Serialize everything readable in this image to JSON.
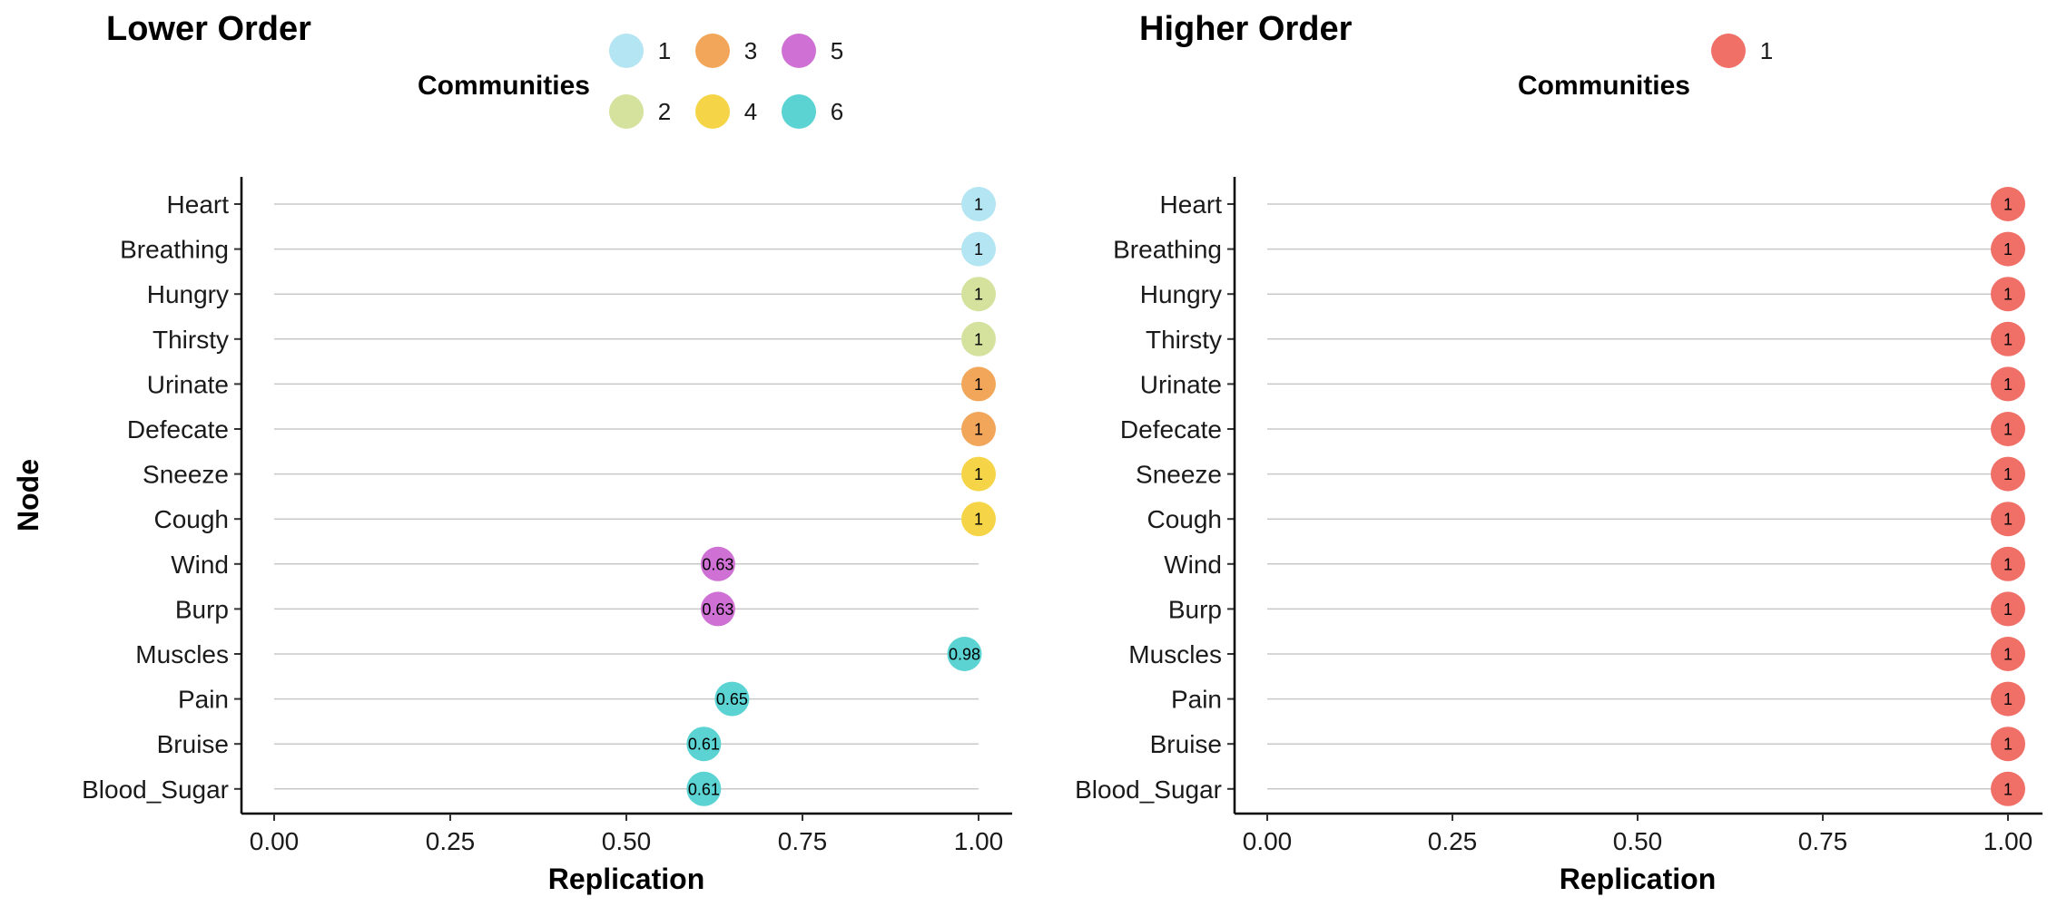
{
  "chart_data": [
    {
      "type": "scatter",
      "title": "Lower Order",
      "xlabel": "Replication",
      "ylabel": "Node",
      "xlim": [
        0,
        1
      ],
      "xticks": [
        "0.00",
        "0.25",
        "0.50",
        "0.75",
        "1.00"
      ],
      "legend_title": "Communities",
      "legend_placement": "top",
      "grid": "horizontal",
      "legend": [
        {
          "label": "1",
          "color": "#B3E5F2"
        },
        {
          "label": "2",
          "color": "#D4E29E"
        },
        {
          "label": "3",
          "color": "#F2A65A"
        },
        {
          "label": "4",
          "color": "#F5D547"
        },
        {
          "label": "5",
          "color": "#CF70D4"
        },
        {
          "label": "6",
          "color": "#5CD3D3"
        }
      ],
      "points": [
        {
          "node": "Heart",
          "value": 1,
          "label": "1",
          "community": "1"
        },
        {
          "node": "Breathing",
          "value": 1,
          "label": "1",
          "community": "1"
        },
        {
          "node": "Hungry",
          "value": 1,
          "label": "1",
          "community": "2"
        },
        {
          "node": "Thirsty",
          "value": 1,
          "label": "1",
          "community": "2"
        },
        {
          "node": "Urinate",
          "value": 1,
          "label": "1",
          "community": "3"
        },
        {
          "node": "Defecate",
          "value": 1,
          "label": "1",
          "community": "3"
        },
        {
          "node": "Sneeze",
          "value": 1,
          "label": "1",
          "community": "4"
        },
        {
          "node": "Cough",
          "value": 1,
          "label": "1",
          "community": "4"
        },
        {
          "node": "Wind",
          "value": 0.63,
          "label": "0.63",
          "community": "5"
        },
        {
          "node": "Burp",
          "value": 0.63,
          "label": "0.63",
          "community": "5"
        },
        {
          "node": "Muscles",
          "value": 0.98,
          "label": "0.98",
          "community": "6"
        },
        {
          "node": "Pain",
          "value": 0.65,
          "label": "0.65",
          "community": "6"
        },
        {
          "node": "Bruise",
          "value": 0.61,
          "label": "0.61",
          "community": "6"
        },
        {
          "node": "Blood_Sugar",
          "value": 0.61,
          "label": "0.61",
          "community": "6"
        }
      ]
    },
    {
      "type": "scatter",
      "title": "Higher Order",
      "xlabel": "Replication",
      "ylabel": "",
      "xlim": [
        0,
        1
      ],
      "xticks": [
        "0.00",
        "0.25",
        "0.50",
        "0.75",
        "1.00"
      ],
      "legend_title": "Communities",
      "legend_placement": "top",
      "grid": "horizontal",
      "legend": [
        {
          "label": "1",
          "color": "#F07068"
        }
      ],
      "points": [
        {
          "node": "Heart",
          "value": 1,
          "label": "1",
          "community": "1"
        },
        {
          "node": "Breathing",
          "value": 1,
          "label": "1",
          "community": "1"
        },
        {
          "node": "Hungry",
          "value": 1,
          "label": "1",
          "community": "1"
        },
        {
          "node": "Thirsty",
          "value": 1,
          "label": "1",
          "community": "1"
        },
        {
          "node": "Urinate",
          "value": 1,
          "label": "1",
          "community": "1"
        },
        {
          "node": "Defecate",
          "value": 1,
          "label": "1",
          "community": "1"
        },
        {
          "node": "Sneeze",
          "value": 1,
          "label": "1",
          "community": "1"
        },
        {
          "node": "Cough",
          "value": 1,
          "label": "1",
          "community": "1"
        },
        {
          "node": "Wind",
          "value": 1,
          "label": "1",
          "community": "1"
        },
        {
          "node": "Burp",
          "value": 1,
          "label": "1",
          "community": "1"
        },
        {
          "node": "Muscles",
          "value": 1,
          "label": "1",
          "community": "1"
        },
        {
          "node": "Pain",
          "value": 1,
          "label": "1",
          "community": "1"
        },
        {
          "node": "Bruise",
          "value": 1,
          "label": "1",
          "community": "1"
        },
        {
          "node": "Blood_Sugar",
          "value": 1,
          "label": "1",
          "community": "1"
        }
      ]
    }
  ]
}
